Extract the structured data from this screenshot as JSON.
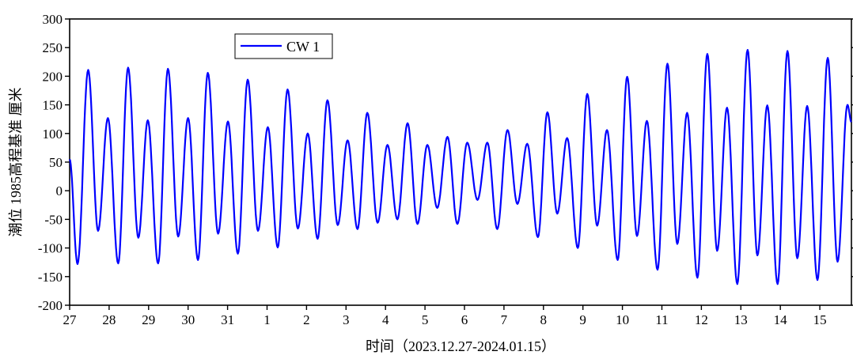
{
  "chart_data": {
    "type": "line",
    "title": "",
    "xlabel": "时间（2023.12.27-2024.01.15）",
    "ylabel": "潮位  1985高程基准  厘米",
    "ylim": [
      -200,
      300
    ],
    "yticks": [
      300,
      250,
      200,
      150,
      100,
      50,
      0,
      -50,
      -100,
      -150,
      -200
    ],
    "xlim": [
      0,
      19.8
    ],
    "xtick_positions": [
      0,
      1,
      2,
      3,
      4,
      5,
      6,
      7,
      8,
      9,
      10,
      11,
      12,
      13,
      14,
      15,
      16,
      17,
      18,
      19
    ],
    "xtick_labels": [
      "27",
      "28",
      "29",
      "30",
      "31",
      "1",
      "2",
      "3",
      "4",
      "5",
      "6",
      "7",
      "8",
      "9",
      "10",
      "11",
      "12",
      "13",
      "14",
      "15"
    ],
    "grid": false,
    "legend_position": "top-left",
    "line_color": "#0000ff",
    "series": [
      {
        "name": "CW 1",
        "color": "#0000ff",
        "extrema": [
          [
            0.0,
            55
          ],
          [
            0.2,
            -128
          ],
          [
            0.47,
            211
          ],
          [
            0.72,
            -70
          ],
          [
            0.97,
            127
          ],
          [
            1.23,
            -127
          ],
          [
            1.48,
            215
          ],
          [
            1.74,
            -82
          ],
          [
            1.98,
            123
          ],
          [
            2.24,
            -127
          ],
          [
            2.49,
            213
          ],
          [
            2.75,
            -80
          ],
          [
            3.0,
            127
          ],
          [
            3.25,
            -121
          ],
          [
            3.5,
            206
          ],
          [
            3.76,
            -75
          ],
          [
            4.01,
            121
          ],
          [
            4.26,
            -110
          ],
          [
            4.51,
            194
          ],
          [
            4.77,
            -70
          ],
          [
            5.02,
            111
          ],
          [
            5.27,
            -99
          ],
          [
            5.52,
            177
          ],
          [
            5.78,
            -66
          ],
          [
            6.03,
            100
          ],
          [
            6.28,
            -84
          ],
          [
            6.53,
            158
          ],
          [
            6.79,
            -60
          ],
          [
            7.04,
            88
          ],
          [
            7.29,
            -67
          ],
          [
            7.54,
            136
          ],
          [
            7.8,
            -56
          ],
          [
            8.05,
            80
          ],
          [
            8.3,
            -50
          ],
          [
            8.56,
            118
          ],
          [
            8.81,
            -58
          ],
          [
            9.06,
            80
          ],
          [
            9.31,
            -30
          ],
          [
            9.57,
            94
          ],
          [
            9.82,
            -58
          ],
          [
            10.07,
            84
          ],
          [
            10.33,
            -16
          ],
          [
            10.58,
            84
          ],
          [
            10.83,
            -67
          ],
          [
            11.09,
            106
          ],
          [
            11.34,
            -23
          ],
          [
            11.59,
            82
          ],
          [
            11.86,
            -81
          ],
          [
            12.1,
            137
          ],
          [
            12.35,
            -40
          ],
          [
            12.6,
            92
          ],
          [
            12.87,
            -100
          ],
          [
            13.11,
            169
          ],
          [
            13.36,
            -61
          ],
          [
            13.61,
            106
          ],
          [
            13.88,
            -121
          ],
          [
            14.12,
            199
          ],
          [
            14.37,
            -79
          ],
          [
            14.62,
            122
          ],
          [
            14.89,
            -138
          ],
          [
            15.14,
            222
          ],
          [
            15.39,
            -93
          ],
          [
            15.64,
            136
          ],
          [
            15.9,
            -152
          ],
          [
            16.15,
            239
          ],
          [
            16.4,
            -105
          ],
          [
            16.65,
            145
          ],
          [
            16.91,
            -163
          ],
          [
            17.17,
            246
          ],
          [
            17.42,
            -113
          ],
          [
            17.67,
            149
          ],
          [
            17.93,
            -163
          ],
          [
            18.18,
            244
          ],
          [
            18.43,
            -118
          ],
          [
            18.68,
            148
          ],
          [
            18.94,
            -156
          ],
          [
            19.2,
            232
          ],
          [
            19.45,
            -124
          ],
          [
            19.7,
            150
          ],
          [
            19.8,
            120
          ]
        ]
      }
    ]
  }
}
